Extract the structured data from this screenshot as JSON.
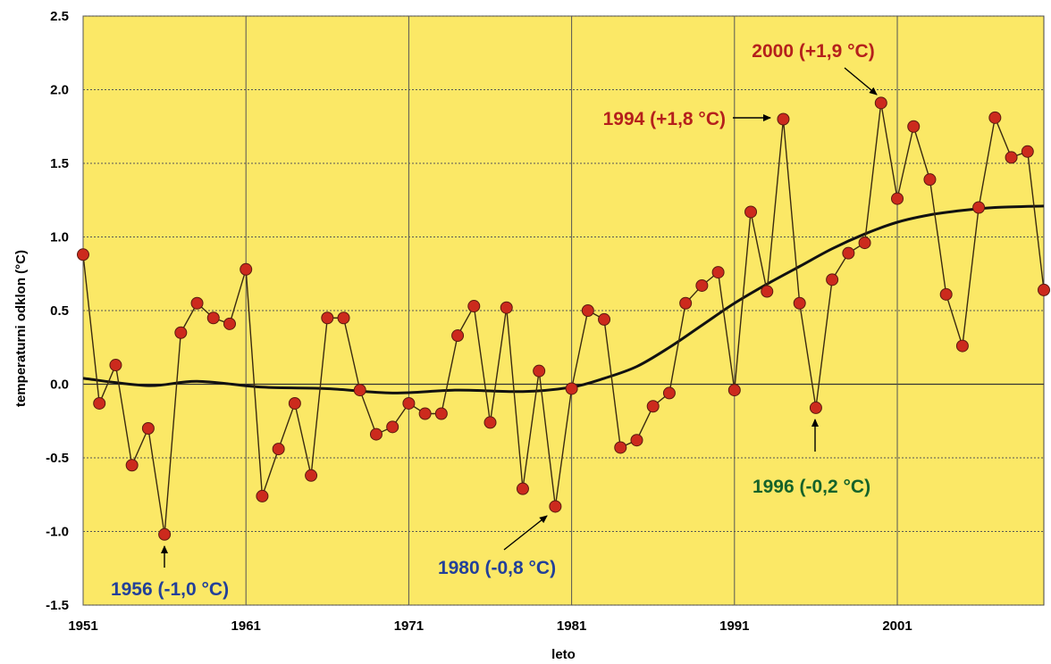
{
  "chart_data": {
    "type": "line",
    "title": "",
    "xlabel": "leto",
    "ylabel": "temperaturni odklon (°C)",
    "xlim": [
      1951,
      2010
    ],
    "ylim": [
      -1.5,
      2.5
    ],
    "x_ticks": [
      1951,
      1961,
      1971,
      1981,
      1991,
      2001
    ],
    "y_ticks": [
      -1.5,
      -1.0,
      -0.5,
      0.0,
      0.5,
      1.0,
      1.5,
      2.0,
      2.5
    ],
    "y_tick_labels": [
      "-1.5",
      "-1.0",
      "-0.5",
      "0.0",
      "0.5",
      "1.0",
      "1.5",
      "2.0",
      "2.5"
    ],
    "grid": true,
    "series": [
      {
        "x": [
          1951,
          1952,
          1953,
          1954,
          1955,
          1956,
          1957,
          1958,
          1959,
          1960,
          1961,
          1962,
          1963,
          1964,
          1965,
          1966,
          1967,
          1968,
          1969,
          1970,
          1971,
          1972,
          1973,
          1974,
          1975,
          1976,
          1977,
          1978,
          1979,
          1980,
          1981,
          1982,
          1983,
          1984,
          1985,
          1986,
          1987,
          1988,
          1989,
          1990,
          1991,
          1992,
          1993,
          1994,
          1995,
          1996,
          1997,
          1998,
          1999,
          2000,
          2001,
          2002,
          2003,
          2004,
          2005,
          2006,
          2007,
          2008,
          2009,
          2010
        ],
        "values": [
          0.88,
          -0.13,
          0.13,
          -0.55,
          -0.3,
          -1.02,
          0.35,
          0.55,
          0.45,
          0.41,
          0.78,
          -0.76,
          -0.44,
          -0.13,
          -0.62,
          0.45,
          0.45,
          -0.04,
          -0.34,
          -0.29,
          -0.13,
          -0.2,
          -0.2,
          0.33,
          0.53,
          -0.26,
          0.52,
          -0.71,
          0.09,
          -0.83,
          -0.03,
          0.5,
          0.44,
          -0.43,
          -0.38,
          -0.15,
          -0.06,
          0.55,
          0.67,
          0.76,
          -0.04,
          1.17,
          0.63,
          1.8,
          0.55,
          -0.16,
          0.71,
          0.89,
          0.96,
          1.91,
          1.26,
          1.75,
          1.39,
          0.61,
          0.26,
          1.2,
          1.81,
          1.54,
          1.58,
          0.64
        ],
        "color": "#cc2a1d",
        "marker": "circle"
      },
      {
        "x": [
          1951,
          1955,
          1958,
          1962,
          1966,
          1970,
          1974,
          1978,
          1981,
          1983,
          1985,
          1987,
          1989,
          1991,
          1993,
          1995,
          1997,
          1999,
          2001,
          2003,
          2005,
          2007,
          2010
        ],
        "values": [
          0.04,
          -0.01,
          0.02,
          -0.02,
          -0.03,
          -0.06,
          -0.04,
          -0.05,
          -0.02,
          0.04,
          0.12,
          0.25,
          0.4,
          0.55,
          0.68,
          0.8,
          0.92,
          1.02,
          1.1,
          1.15,
          1.18,
          1.2,
          1.21
        ],
        "color": "#111111",
        "smooth": true
      }
    ],
    "annotations": [
      {
        "text": "2000 (+1,9 °C)",
        "x": 2000,
        "y": 1.91,
        "color": "#b5201c"
      },
      {
        "text": "1994 (+1,8 °C)",
        "x": 1994,
        "y": 1.8,
        "color": "#b5201c"
      },
      {
        "text": "1996 (-0,2 °C)",
        "x": 1996,
        "y": -0.16,
        "color": "#15622a"
      },
      {
        "text": "1980 (-0,8 °C)",
        "x": 1980,
        "y": -0.83,
        "color": "#22409a"
      },
      {
        "text": "1956 (-1,0 °C)",
        "x": 1956,
        "y": -1.02,
        "color": "#22409a"
      }
    ],
    "colors": {
      "plot_background": "#fbe866",
      "grid": "#555555",
      "points": "#cc2a1d",
      "trend": "#111111"
    }
  }
}
